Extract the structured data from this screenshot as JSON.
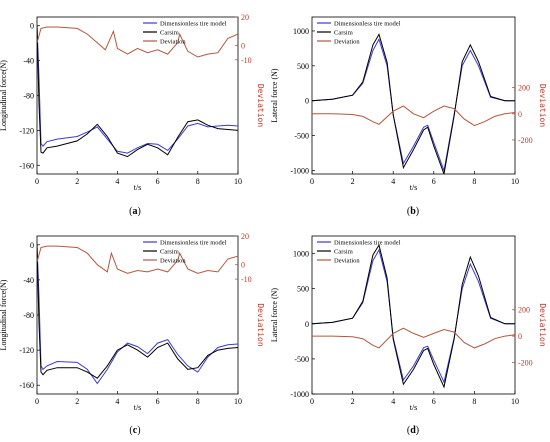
{
  "figure": {
    "captions": [
      "(a)",
      "(b)",
      "(c)",
      "(d)"
    ]
  },
  "series_colors": {
    "Dimensionless tire model": "#3a3ad8",
    "Carsim": "#000000",
    "Deviation": "#b5563f"
  },
  "chart_data": [
    {
      "type": "line",
      "caption": "(a)",
      "xlabel": "t/s",
      "ylabel": "Longitudinal force(N)",
      "ylabel_right": "Deviation",
      "xlim": [
        0,
        10
      ],
      "ylim": [
        -170,
        10
      ],
      "ylim_right": [
        -90,
        20
      ],
      "xticks": [
        "0",
        "2",
        "4",
        "6",
        "8",
        "10"
      ],
      "yticks": [
        "0",
        "-40",
        "-80",
        "-120",
        "-160"
      ],
      "yticks_right": [
        "20",
        "0",
        "-10"
      ],
      "legend": [
        "Dimensionless tire model",
        "Carsim",
        "Deviation"
      ],
      "legend_position": "upper-right",
      "grid": false,
      "series": [
        {
          "name": "Dimensionless tire model",
          "axis": "left",
          "x": [
            0,
            0.1,
            0.2,
            0.3,
            0.5,
            1,
            2,
            2.5,
            3,
            3.5,
            4,
            4.5,
            5,
            5.5,
            6,
            6.5,
            7,
            7.5,
            8,
            8.5,
            9,
            9.5,
            10
          ],
          "y": [
            0,
            -60,
            -135,
            -138,
            -133,
            -130,
            -127,
            -122,
            -116,
            -130,
            -144,
            -146,
            -140,
            -135,
            -136,
            -143,
            -130,
            -115,
            -112,
            -116,
            -115,
            -114,
            -115
          ]
        },
        {
          "name": "Carsim",
          "axis": "left",
          "x": [
            0,
            0.1,
            0.2,
            0.3,
            0.5,
            1,
            2,
            2.5,
            3,
            3.5,
            4,
            4.5,
            5,
            5.5,
            6,
            6.5,
            7,
            7.5,
            8,
            8.5,
            9,
            9.5,
            10
          ],
          "y": [
            0,
            -90,
            -145,
            -146,
            -140,
            -138,
            -132,
            -124,
            -113,
            -127,
            -146,
            -150,
            -142,
            -136,
            -140,
            -148,
            -128,
            -110,
            -108,
            -114,
            -118,
            -119,
            -120
          ]
        },
        {
          "name": "Deviation",
          "axis": "right",
          "x": [
            0,
            0.2,
            0.5,
            1,
            2,
            2.5,
            3,
            3.4,
            3.8,
            4,
            4.5,
            5,
            5.5,
            6,
            6.5,
            7,
            7.1,
            7.5,
            8,
            8.5,
            9,
            9.5,
            10
          ],
          "y": [
            2,
            12,
            13,
            13,
            12,
            8,
            2,
            -3,
            10,
            -2,
            -6,
            -2,
            -5,
            -3,
            -6,
            2,
            8,
            -4,
            -8,
            -6,
            -5,
            5,
            8
          ]
        }
      ]
    },
    {
      "type": "line",
      "caption": "(b)",
      "xlabel": "t/s",
      "ylabel": "Lateral force (N)",
      "ylabel_right": "Deviation",
      "xlim": [
        0,
        10
      ],
      "ylim": [
        -1050,
        1200
      ],
      "ylim_right": [
        -460,
        740
      ],
      "xticks": [
        "0",
        "2",
        "4",
        "6",
        "8",
        "10"
      ],
      "yticks": [
        "1000",
        "500",
        "0",
        "-500",
        "-1000"
      ],
      "yticks_right": [
        "200",
        "0",
        "-200"
      ],
      "legend": [
        "Dimensionless tire model",
        "Carsim",
        "Deviation"
      ],
      "legend_position": "upper-left",
      "grid": false,
      "series": [
        {
          "name": "Dimensionless tire model",
          "axis": "left",
          "x": [
            0,
            1,
            2,
            2.5,
            3,
            3.3,
            3.7,
            4,
            4.5,
            5,
            5.5,
            5.7,
            6,
            6.5,
            7,
            7.4,
            7.8,
            8.2,
            8.8,
            9.5,
            10
          ],
          "y": [
            0,
            20,
            80,
            250,
            720,
            880,
            500,
            -200,
            -900,
            -650,
            -380,
            -350,
            -600,
            -1000,
            -200,
            500,
            720,
            500,
            50,
            0,
            0
          ]
        },
        {
          "name": "Carsim",
          "axis": "left",
          "x": [
            0,
            1,
            2,
            2.5,
            3,
            3.3,
            3.7,
            4,
            4.5,
            5,
            5.5,
            5.7,
            6,
            6.5,
            7,
            7.4,
            7.8,
            8.2,
            8.8,
            9.5,
            10
          ],
          "y": [
            0,
            20,
            80,
            270,
            800,
            950,
            550,
            -200,
            -960,
            -700,
            -420,
            -380,
            -650,
            -1050,
            -220,
            560,
            800,
            560,
            60,
            0,
            0
          ]
        },
        {
          "name": "Deviation",
          "axis": "right",
          "x": [
            0,
            1,
            2,
            2.5,
            3,
            3.3,
            4,
            4.5,
            5,
            5.5,
            6,
            6.5,
            7,
            7.5,
            8,
            8.5,
            9,
            9.5,
            10
          ],
          "y": [
            0,
            0,
            -5,
            -20,
            -60,
            -80,
            20,
            60,
            0,
            -30,
            20,
            60,
            40,
            -40,
            -90,
            -60,
            -20,
            0,
            10
          ]
        }
      ]
    },
    {
      "type": "line",
      "caption": "(c)",
      "xlabel": "t/s",
      "ylabel": "Longitudinal force(N)",
      "ylabel_right": "Deviation",
      "xlim": [
        0,
        10
      ],
      "ylim": [
        -170,
        10
      ],
      "ylim_right": [
        -90,
        20
      ],
      "xticks": [
        "0",
        "2",
        "4",
        "6",
        "8",
        "10"
      ],
      "yticks": [
        "0",
        "-40",
        "-80",
        "-120",
        "-160"
      ],
      "yticks_right": [
        "20",
        "0",
        "-10"
      ],
      "legend": [
        "Dimensionless tire model",
        "Carsim",
        "Deviation"
      ],
      "legend_position": "upper-right",
      "grid": false,
      "series": [
        {
          "name": "Dimensionless tire model",
          "axis": "left",
          "x": [
            0,
            0.1,
            0.2,
            0.3,
            0.5,
            1,
            2,
            2.5,
            3,
            3.5,
            4,
            4.5,
            5,
            5.5,
            6,
            6.5,
            7,
            7.5,
            8,
            8.5,
            9,
            9.5,
            10
          ],
          "y": [
            0,
            -60,
            -138,
            -142,
            -138,
            -133,
            -134,
            -142,
            -158,
            -142,
            -122,
            -112,
            -116,
            -124,
            -112,
            -108,
            -125,
            -138,
            -145,
            -128,
            -117,
            -114,
            -113
          ]
        },
        {
          "name": "Carsim",
          "axis": "left",
          "x": [
            0,
            0.1,
            0.2,
            0.3,
            0.5,
            1,
            2,
            2.5,
            3,
            3.5,
            4,
            4.5,
            5,
            5.5,
            6,
            6.5,
            7,
            7.5,
            8,
            8.5,
            9,
            9.5,
            10
          ],
          "y": [
            0,
            -90,
            -145,
            -148,
            -143,
            -140,
            -140,
            -145,
            -152,
            -138,
            -120,
            -114,
            -120,
            -128,
            -117,
            -112,
            -130,
            -142,
            -140,
            -126,
            -120,
            -118,
            -117
          ]
        },
        {
          "name": "Deviation",
          "axis": "right",
          "x": [
            0,
            0.2,
            0.5,
            1,
            2,
            2.5,
            3,
            3.5,
            3.7,
            4,
            4.5,
            5,
            5.5,
            6,
            6.5,
            7,
            7.1,
            7.5,
            8,
            8.5,
            9,
            9.5,
            10
          ],
          "y": [
            2,
            12,
            13,
            13,
            12,
            8,
            0,
            -5,
            8,
            -3,
            -6,
            -4,
            -5,
            -3,
            -5,
            3,
            8,
            -3,
            -6,
            -4,
            -5,
            4,
            6
          ]
        }
      ]
    },
    {
      "type": "line",
      "caption": "(d)",
      "xlabel": "t/s",
      "ylabel": "Lateral force (N)",
      "ylabel_right": "Deviation",
      "xlim": [
        0,
        10
      ],
      "ylim": [
        -1000,
        1250
      ],
      "ylim_right": [
        -440,
        760
      ],
      "xticks": [
        "0",
        "2",
        "4",
        "6",
        "8",
        "10"
      ],
      "yticks": [
        "1000",
        "500",
        "0",
        "-500",
        "-1000"
      ],
      "yticks_right": [
        "200",
        "0",
        "-200"
      ],
      "legend": [
        "Dimensionless tire model",
        "Carsim",
        "Deviation"
      ],
      "legend_position": "upper-left",
      "grid": false,
      "series": [
        {
          "name": "Dimensionless tire model",
          "axis": "left",
          "x": [
            0,
            1,
            2,
            2.5,
            3,
            3.3,
            3.7,
            4,
            4.5,
            5,
            5.5,
            5.7,
            6,
            6.5,
            7,
            7.4,
            7.8,
            8.2,
            8.8,
            9.5,
            10
          ],
          "y": [
            0,
            20,
            80,
            300,
            900,
            1050,
            600,
            -200,
            -800,
            -600,
            -340,
            -320,
            -520,
            -830,
            -200,
            500,
            850,
            600,
            80,
            0,
            0
          ]
        },
        {
          "name": "Carsim",
          "axis": "left",
          "x": [
            0,
            1,
            2,
            2.5,
            3,
            3.3,
            3.7,
            4,
            4.5,
            5,
            5.5,
            5.7,
            6,
            6.5,
            7,
            7.4,
            7.8,
            8.2,
            8.8,
            9.5,
            10
          ],
          "y": [
            0,
            20,
            80,
            320,
            980,
            1120,
            650,
            -220,
            -860,
            -650,
            -380,
            -350,
            -580,
            -900,
            -220,
            560,
            950,
            680,
            90,
            0,
            0
          ]
        },
        {
          "name": "Deviation",
          "axis": "right",
          "x": [
            0,
            1,
            2,
            2.5,
            3,
            3.3,
            4,
            4.5,
            5,
            5.5,
            6,
            6.5,
            7,
            7.5,
            8,
            8.5,
            9,
            9.5,
            10
          ],
          "y": [
            0,
            0,
            -5,
            -20,
            -70,
            -90,
            20,
            60,
            20,
            -10,
            20,
            50,
            30,
            -50,
            -90,
            -60,
            -20,
            0,
            10
          ]
        }
      ]
    }
  ]
}
